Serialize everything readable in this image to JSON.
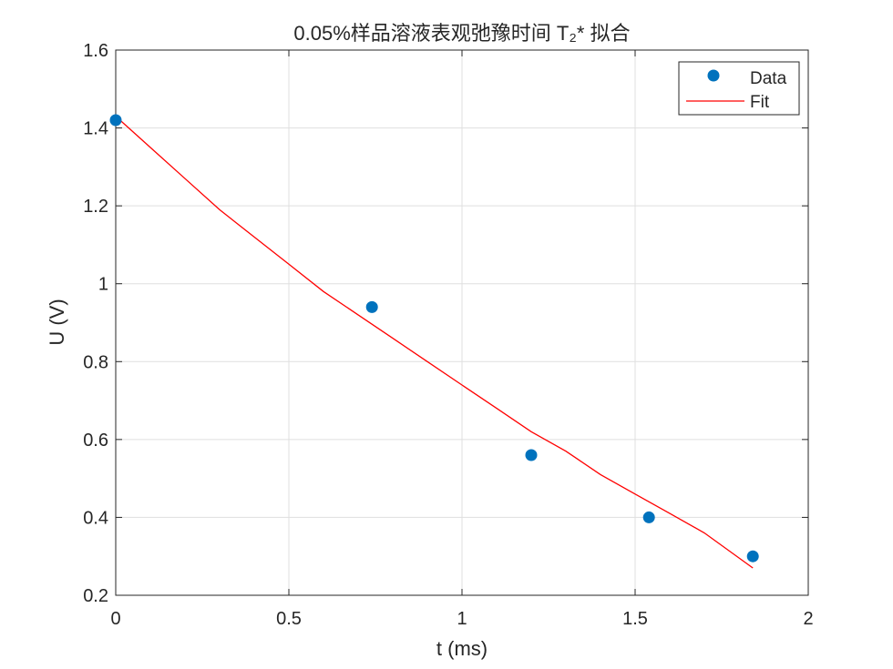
{
  "chart_data": {
    "type": "scatter",
    "title": "0.05%样品溶液表观弛豫时间 T₂* 拟合",
    "xlabel": "t (ms)",
    "ylabel": "U (V)",
    "xlim": [
      0,
      2
    ],
    "ylim": [
      0.2,
      1.6
    ],
    "xticks": [
      "0",
      "0.5",
      "1",
      "1.5",
      "2"
    ],
    "yticks": [
      "0.2",
      "0.4",
      "0.6",
      "0.8",
      "1",
      "1.2",
      "1.4",
      "1.6"
    ],
    "grid": true,
    "legend_position": "top-right",
    "series": [
      {
        "name": "Data",
        "kind": "scatter",
        "color": "#0072BD",
        "x": [
          0,
          0.74,
          1.2,
          1.54,
          1.84
        ],
        "y": [
          1.42,
          0.94,
          0.56,
          0.4,
          0.3
        ]
      },
      {
        "name": "Fit",
        "kind": "line",
        "color": "#FF0000",
        "x": [
          0,
          0.1,
          0.2,
          0.3,
          0.4,
          0.5,
          0.6,
          0.7,
          0.8,
          0.9,
          1.0,
          1.1,
          1.2,
          1.3,
          1.4,
          1.5,
          1.6,
          1.7,
          1.84
        ],
        "y": [
          1.43,
          1.35,
          1.27,
          1.19,
          1.12,
          1.05,
          0.98,
          0.92,
          0.86,
          0.8,
          0.74,
          0.68,
          0.62,
          0.57,
          0.51,
          0.46,
          0.41,
          0.36,
          0.27
        ]
      }
    ]
  }
}
